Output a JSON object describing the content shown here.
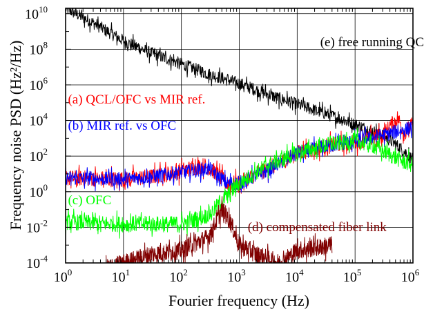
{
  "chart_data": {
    "type": "line",
    "title": "",
    "xlabel": "Fourier frequency (Hz)",
    "ylabel": "Frequency noise PSD (Hz²/Hz)",
    "xscale": "log",
    "yscale": "log",
    "xlim": [
      1,
      1000000
    ],
    "ylim": [
      0.0001,
      20000000000
    ],
    "grid": true,
    "x_ticks": [
      {
        "base": "10",
        "exp": "0",
        "value": 1
      },
      {
        "base": "10",
        "exp": "1",
        "value": 10
      },
      {
        "base": "10",
        "exp": "2",
        "value": 100
      },
      {
        "base": "10",
        "exp": "3",
        "value": 1000
      },
      {
        "base": "10",
        "exp": "4",
        "value": 10000
      },
      {
        "base": "10",
        "exp": "5",
        "value": 100000
      },
      {
        "base": "10",
        "exp": "6",
        "value": 1000000
      }
    ],
    "y_ticks": [
      {
        "base": "10",
        "exp": "-4",
        "value": 0.0001
      },
      {
        "base": "10",
        "exp": "-2",
        "value": 0.01
      },
      {
        "base": "10",
        "exp": "0",
        "value": 1
      },
      {
        "base": "10",
        "exp": "2",
        "value": 100
      },
      {
        "base": "10",
        "exp": "4",
        "value": 10000
      },
      {
        "base": "10",
        "exp": "6",
        "value": 1000000
      },
      {
        "base": "10",
        "exp": "8",
        "value": 100000000
      },
      {
        "base": "10",
        "exp": "10",
        "value": 10000000000
      }
    ],
    "series": [
      {
        "name": "(e) free running QCL",
        "color": "#000000",
        "noise": 0.35,
        "points": [
          [
            1,
            20000000000.0
          ],
          [
            3,
            3000000000.0
          ],
          [
            10,
            300000000.0
          ],
          [
            30,
            60000000.0
          ],
          [
            100,
            15000000.0
          ],
          [
            300,
            4000000.0
          ],
          [
            1000,
            1200000.0
          ],
          [
            3000,
            300000.0
          ],
          [
            10000,
            80000.0
          ],
          [
            30000,
            25000.0
          ],
          [
            100000,
            6000.0
          ],
          [
            300000,
            1500.0
          ],
          [
            600000,
            300
          ],
          [
            1000000,
            60
          ]
        ]
      },
      {
        "name": "(a) QCL/OFC vs MIR ref.",
        "color": "#ff0000",
        "noise": 0.45,
        "points": [
          [
            1,
            6
          ],
          [
            10,
            5
          ],
          [
            30,
            7
          ],
          [
            60,
            10
          ],
          [
            120,
            18
          ],
          [
            250,
            30
          ],
          [
            400,
            12
          ],
          [
            600,
            3
          ],
          [
            1000,
            3
          ],
          [
            2000,
            10
          ],
          [
            5000,
            40
          ],
          [
            10000,
            150
          ],
          [
            30000,
            350
          ],
          [
            100000,
            600
          ],
          [
            300000,
            1500
          ],
          [
            550000,
            15000
          ],
          [
            700000,
            2000
          ],
          [
            1000000,
            6000
          ]
        ]
      },
      {
        "name": "(b) MIR ref. vs OFC",
        "color": "#0000ff",
        "noise": 0.4,
        "points": [
          [
            1,
            6
          ],
          [
            10,
            5
          ],
          [
            30,
            7
          ],
          [
            100,
            12
          ],
          [
            300,
            20
          ],
          [
            600,
            3
          ],
          [
            1000,
            3
          ],
          [
            3000,
            15
          ],
          [
            10000,
            150
          ],
          [
            30000,
            350
          ],
          [
            100000,
            700
          ],
          [
            300000,
            1500
          ],
          [
            1000000,
            4000
          ]
        ]
      },
      {
        "name": "(c) OFC",
        "color": "#00ff00",
        "noise": 0.45,
        "points": [
          [
            1,
            0.02
          ],
          [
            10,
            0.015
          ],
          [
            100,
            0.015
          ],
          [
            300,
            0.05
          ],
          [
            500,
            0.3
          ],
          [
            1000,
            3
          ],
          [
            3000,
            30
          ],
          [
            10000,
            150
          ],
          [
            30000,
            400
          ],
          [
            100000,
            700
          ],
          [
            200000,
            400
          ],
          [
            500000,
            80
          ],
          [
            1000000,
            30
          ]
        ]
      },
      {
        "name": "(d) compensated fiber link",
        "color": "#800000",
        "noise": 0.5,
        "points": [
          [
            5,
            5e-05
          ],
          [
            10,
            0.0001
          ],
          [
            30,
            0.0003
          ],
          [
            100,
            0.0005
          ],
          [
            300,
            0.003
          ],
          [
            500,
            0.1
          ],
          [
            700,
            0.02
          ],
          [
            1000,
            0.001
          ],
          [
            2000,
            0.0003
          ],
          [
            5000,
            0.0001
          ],
          [
            10000,
            0.0005
          ],
          [
            40000,
            0.001
          ]
        ]
      }
    ],
    "annotations": [
      {
        "id": "e",
        "text": "(e) free running QCL",
        "color": "#000000",
        "x": 25000,
        "y": 150000000.0
      },
      {
        "id": "a",
        "text": "(a) QCL/OFC vs MIR ref.",
        "color": "#ff0000",
        "x": 1.1,
        "y": 90000.0
      },
      {
        "id": "b",
        "text": "(b) MIR ref. vs OFC",
        "color": "#0000ff",
        "x": 1.1,
        "y": 3000.0
      },
      {
        "id": "c",
        "text": "(c) OFC",
        "color": "#00ff00",
        "x": 1.1,
        "y": 0.2
      },
      {
        "id": "d",
        "text": "(d) compensated fiber link",
        "color": "#800000",
        "x": 1400,
        "y": 0.006
      }
    ]
  }
}
